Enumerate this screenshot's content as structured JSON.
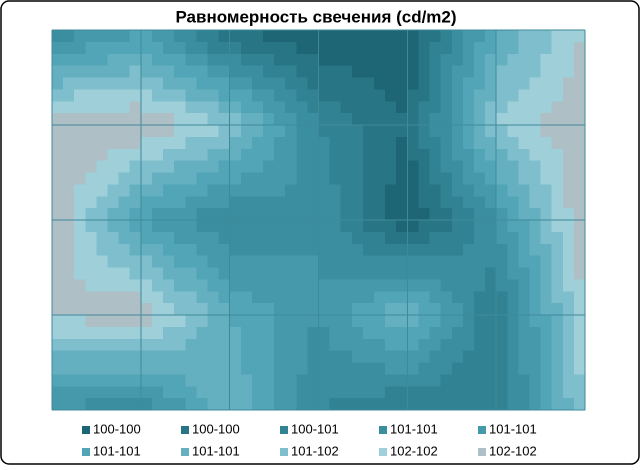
{
  "chart_data": {
    "type": "contour",
    "title": "Равномерность свечения (cd/m2)",
    "zlim": [
      100,
      102
    ],
    "z": [
      [
        100.6,
        101.0,
        100.2,
        100.0,
        100.0,
        101.2,
        101.8
      ],
      [
        102.0,
        102.0,
        101.6,
        100.6,
        100.2,
        101.6,
        102.0
      ],
      [
        102.0,
        101.0,
        100.6,
        100.8,
        100.0,
        100.8,
        102.0
      ],
      [
        101.8,
        102.0,
        101.2,
        100.8,
        101.4,
        100.4,
        101.8
      ],
      [
        100.8,
        100.6,
        101.4,
        100.6,
        100.4,
        100.4,
        101.6
      ]
    ],
    "grid": true,
    "series": [
      {
        "name": "100-100",
        "color": "#1e6675"
      },
      {
        "name": "100-100",
        "color": "#287585"
      },
      {
        "name": "100-101",
        "color": "#318292"
      },
      {
        "name": "101-101",
        "color": "#3a8ea0"
      },
      {
        "name": "101-101",
        "color": "#4599ab"
      },
      {
        "name": "101-101",
        "color": "#52a5b7"
      },
      {
        "name": "101-101",
        "color": "#64b0c1"
      },
      {
        "name": "101-102",
        "color": "#7fbfcd"
      },
      {
        "name": "102-102",
        "color": "#9fcfd9"
      },
      {
        "name": "102-102",
        "color": "#afbfc6"
      }
    ]
  }
}
